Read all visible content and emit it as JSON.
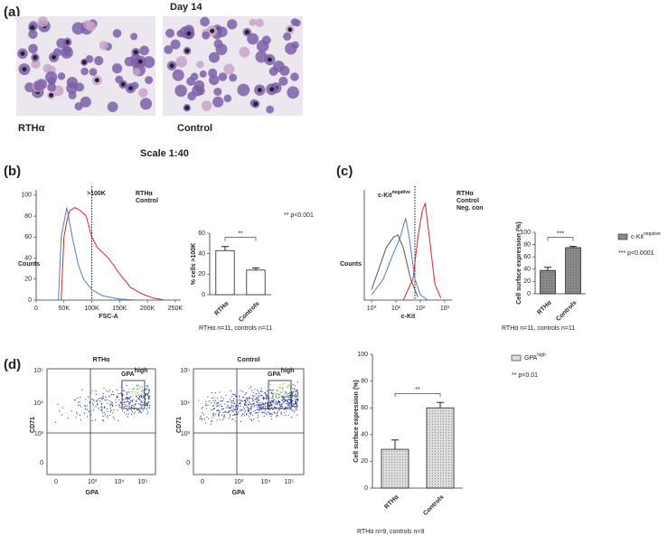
{
  "panels": {
    "labels": [
      "(a)",
      "(b)",
      "(c)",
      "(d)"
    ],
    "a": {
      "title": "Day 14",
      "captions": [
        "RTHα",
        "Control"
      ],
      "scale": "Scale 1:40"
    },
    "d": {
      "plots": [
        {
          "title": "RTHα",
          "gate": "GPA",
          "gate_sup": "high",
          "ylabel": "CD71",
          "xlabel": "GPA",
          "yticks": [
            "10⁵",
            "10⁴",
            "10³",
            "0"
          ],
          "xticks": [
            "0",
            "10³",
            "10⁴",
            "10⁵"
          ]
        },
        {
          "title": "Control",
          "gate": "GPA",
          "gate_sup": "high",
          "ylabel": "CD71",
          "xlabel": "GPA",
          "yticks": [
            "10⁵",
            "10⁴",
            "10³",
            "0"
          ],
          "xticks": [
            "0",
            "10³",
            "10⁴",
            "10⁵"
          ]
        }
      ]
    }
  },
  "chart_data": [
    {
      "type": "line",
      "xlabel": "FSC-A",
      "ylabel": "Counts",
      "annotation": ">100K",
      "threshold": 100000,
      "xlim": [
        0,
        260000
      ],
      "xticks": [
        {
          "value": 0,
          "label": "0"
        },
        {
          "value": 50000,
          "label": "50K"
        },
        {
          "value": 100000,
          "label": "100K"
        },
        {
          "value": 150000,
          "label": "150K"
        },
        {
          "value": 200000,
          "label": "200K"
        },
        {
          "value": 250000,
          "label": "250K"
        }
      ],
      "ylim": [
        0,
        105
      ],
      "yticks": [
        0,
        20,
        40,
        60,
        80,
        100
      ],
      "series": [
        {
          "name": "RTHα",
          "color": "#d62728",
          "x": [
            45000,
            50000,
            55000,
            60000,
            70000,
            80000,
            90000,
            100000,
            110000,
            130000,
            150000,
            170000,
            190000,
            210000,
            230000
          ],
          "values": [
            0,
            60,
            75,
            85,
            88,
            85,
            80,
            60,
            50,
            40,
            25,
            12,
            6,
            2,
            0
          ]
        },
        {
          "name": "Control",
          "color": "#4a7fd4",
          "x": [
            40000,
            45000,
            55000,
            65000,
            75000,
            85000,
            100000,
            120000,
            150000,
            180000
          ],
          "values": [
            0,
            60,
            88,
            60,
            35,
            20,
            10,
            4,
            1,
            0
          ]
        }
      ]
    },
    {
      "type": "bar",
      "ylabel": "% cells >100K",
      "categories": [
        "RTHα",
        "Controls"
      ],
      "values": [
        43,
        24
      ],
      "errors": [
        4,
        2
      ],
      "color": "#ffffff",
      "ylim": [
        0,
        60
      ],
      "yticks": [
        0,
        20,
        40,
        60
      ],
      "significance": "**",
      "note": "** p<0.001",
      "footnote": "RTHα n=11, controls n=11"
    },
    {
      "type": "line",
      "xlabel": "c-Kit",
      "ylabel": "Counts",
      "annotation": "c-Kit",
      "annotation_sup": "negative",
      "threshold": 60,
      "xlog": true,
      "xlim": [
        0.5,
        2000
      ],
      "xticks": [
        {
          "value": 1,
          "label": "10⁰"
        },
        {
          "value": 10,
          "label": "10¹"
        },
        {
          "value": 100,
          "label": "10²"
        },
        {
          "value": 1000,
          "label": "10³"
        }
      ],
      "ylim": [
        0,
        105
      ],
      "series": [
        {
          "name": "RTHα",
          "color": "#d62728",
          "x": [
            20,
            50,
            80,
            120,
            160,
            250,
            400,
            700
          ],
          "values": [
            0,
            20,
            60,
            85,
            92,
            55,
            15,
            2
          ]
        },
        {
          "name": "Control",
          "color": "#4a7fd4",
          "x": [
            1,
            3,
            8,
            15,
            25,
            35,
            60,
            100,
            200
          ],
          "values": [
            5,
            20,
            45,
            60,
            78,
            60,
            20,
            5,
            0
          ]
        },
        {
          "name": "Neg. con",
          "color": "#555555",
          "x": [
            1,
            2,
            4,
            8,
            12,
            20,
            40,
            80
          ],
          "values": [
            10,
            30,
            50,
            60,
            62,
            50,
            20,
            3
          ]
        }
      ]
    },
    {
      "type": "bar",
      "ylabel": "Cell surface expression (%)",
      "categories": [
        "RTHα",
        "Controls"
      ],
      "values": [
        38,
        75
      ],
      "errors": [
        5,
        2
      ],
      "color": "#8a8a8a",
      "ylim": [
        0,
        100
      ],
      "yticks": [
        0,
        20,
        40,
        60,
        80,
        100
      ],
      "significance": "***",
      "legend": "c-Kit",
      "legend_sup": "negative",
      "note": "*** p<0.0001",
      "footnote": "RTHα n=11, controls n=11"
    },
    {
      "type": "bar",
      "ylabel": "Cell surface expression (%)",
      "categories": [
        "RTHα",
        "Controls"
      ],
      "values": [
        29,
        60
      ],
      "errors": [
        7,
        4
      ],
      "color": "#dddddd",
      "ylim": [
        0,
        100
      ],
      "yticks": [
        0,
        20,
        40,
        60,
        80,
        100
      ],
      "significance": "**",
      "legend": "GPA",
      "legend_sup": "high",
      "note": "** p<0.01",
      "footnote": "RTHα n=9, controls n=9"
    }
  ]
}
